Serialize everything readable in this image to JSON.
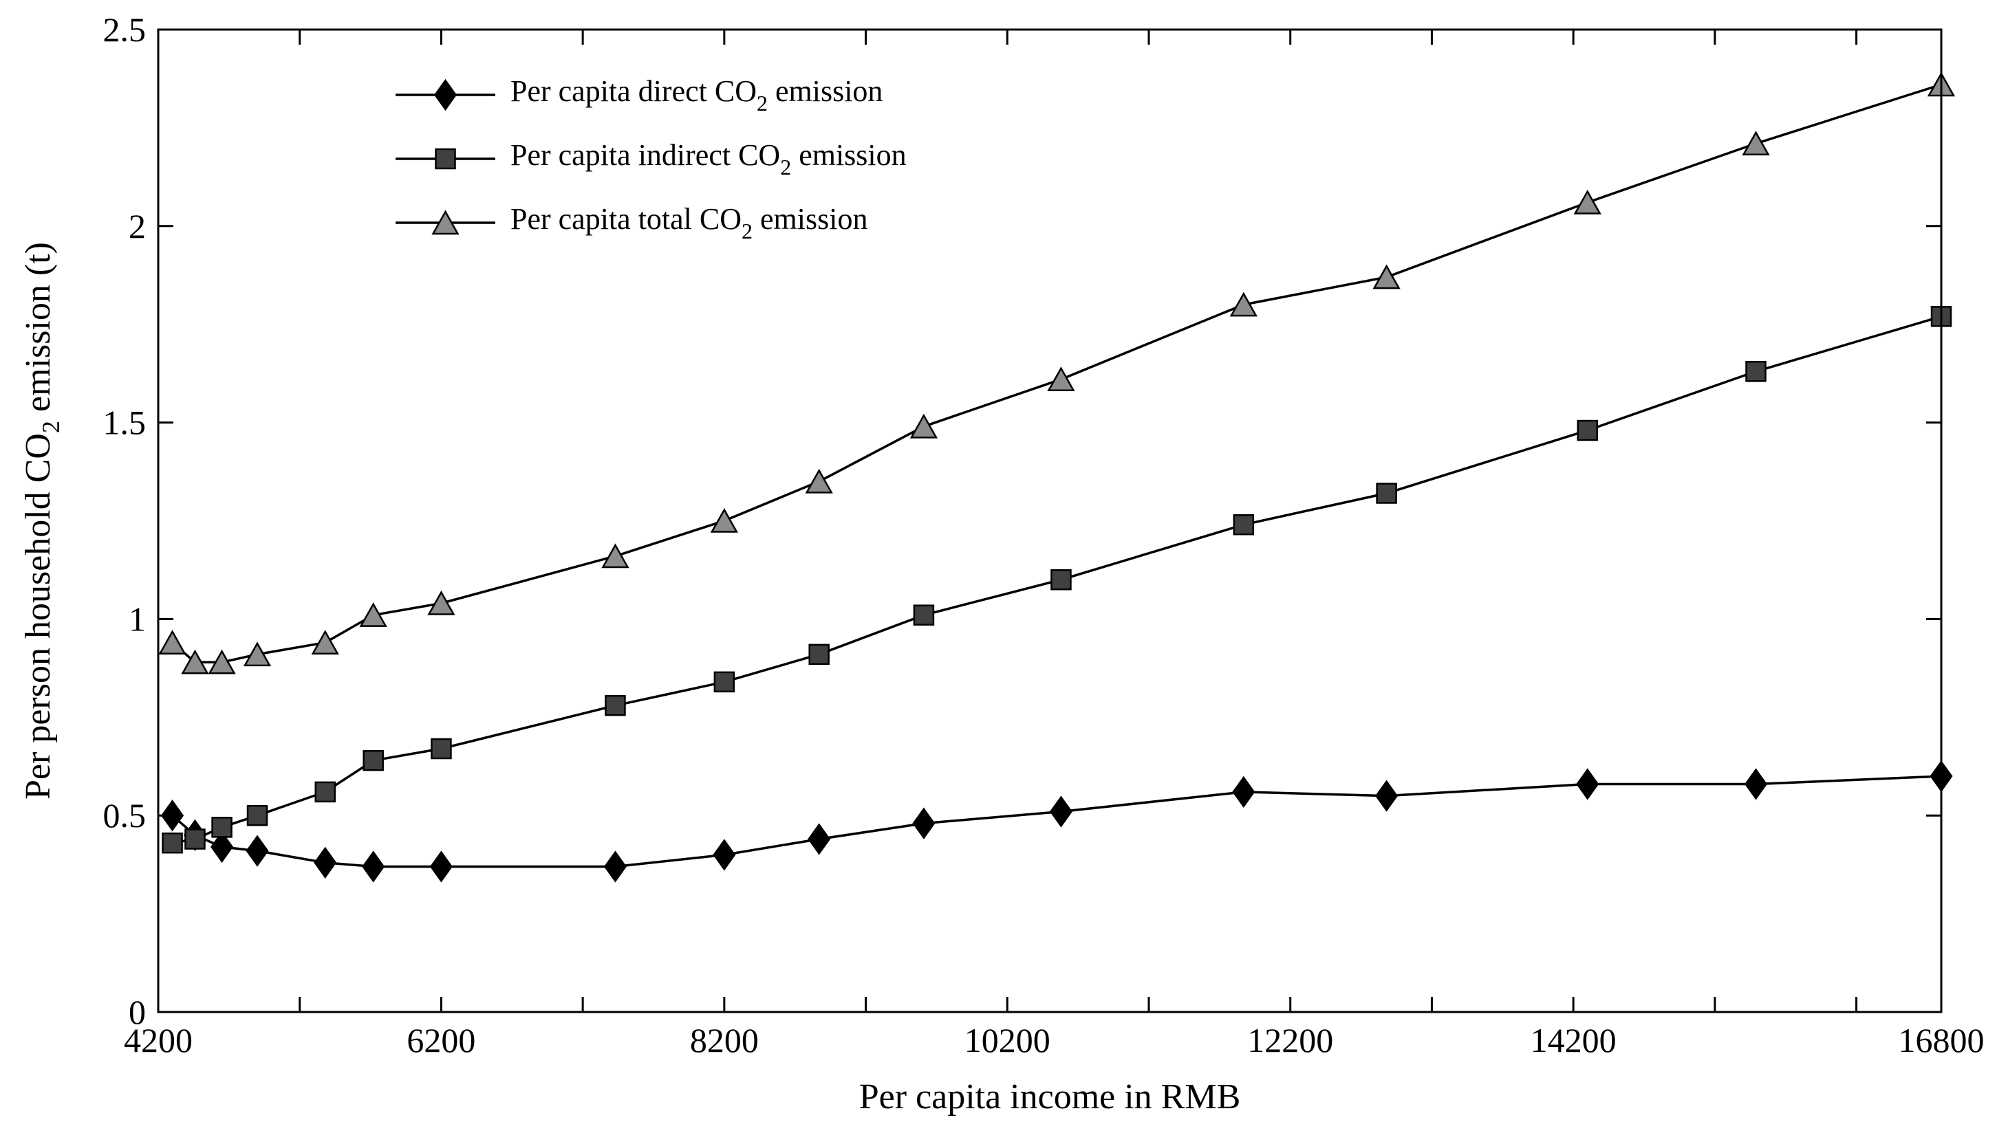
{
  "chart_data": {
    "type": "line",
    "title": "",
    "xlabel": "Per capita income in RMB",
    "ylabel": {
      "prefix": "Per person household CO",
      "subscript": "2",
      "suffix": " emission (t)"
    },
    "xlim": [
      4200,
      16800
    ],
    "ylim": [
      0,
      2.5
    ],
    "xticks": [
      4200,
      6200,
      8200,
      10200,
      12200,
      14200,
      16800
    ],
    "xtick_labels": [
      "4200",
      "6200",
      "8200",
      "10200",
      "12200",
      "14200",
      "16800"
    ],
    "minor_xticks": [
      5200,
      7200,
      9200,
      11200,
      13200,
      15200,
      16200
    ],
    "yticks": [
      0,
      0.5,
      1,
      1.5,
      2,
      2.5
    ],
    "ytick_labels": [
      "0",
      "0.5",
      "1",
      "1.5",
      "2",
      "2.5"
    ],
    "grid": false,
    "legend_position": "top-left",
    "x": [
      4300,
      4460,
      4650,
      4900,
      5380,
      5720,
      6200,
      7430,
      8200,
      8870,
      9610,
      10580,
      11870,
      12880,
      14300,
      15490,
      16800
    ],
    "series": [
      {
        "name": "Per capita direct CO2 emission",
        "legend": {
          "prefix": "Per capita direct CO",
          "subscript": "2",
          "suffix": " emission"
        },
        "marker": "diamond",
        "color": "#000000",
        "values": [
          0.5,
          0.45,
          0.42,
          0.41,
          0.38,
          0.37,
          0.37,
          0.37,
          0.4,
          0.44,
          0.48,
          0.51,
          0.56,
          0.55,
          0.58,
          0.58,
          0.6
        ]
      },
      {
        "name": "Per capita indirect CO2 emission",
        "legend": {
          "prefix": "Per capita indirect CO",
          "subscript": "2",
          "suffix": " emission"
        },
        "marker": "square",
        "color": "#404040",
        "values": [
          0.43,
          0.44,
          0.47,
          0.5,
          0.56,
          0.64,
          0.67,
          0.78,
          0.84,
          0.91,
          1.01,
          1.1,
          1.24,
          1.32,
          1.48,
          1.63,
          1.77
        ]
      },
      {
        "name": "Per capita total CO2 emission",
        "legend": {
          "prefix": "Per capita total CO",
          "subscript": "2",
          "suffix": " emission"
        },
        "marker": "triangle",
        "color": "#8c8c8c",
        "values": [
          0.94,
          0.89,
          0.89,
          0.91,
          0.94,
          1.01,
          1.04,
          1.16,
          1.25,
          1.35,
          1.49,
          1.61,
          1.8,
          1.87,
          2.06,
          2.21,
          2.36
        ]
      }
    ]
  }
}
